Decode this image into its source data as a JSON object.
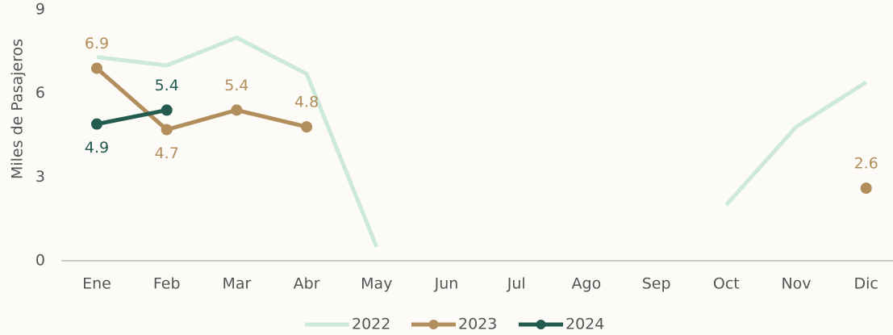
{
  "chart_data": {
    "type": "line",
    "y_label": "Miles de Pasajeros",
    "categories": [
      "Ene",
      "Feb",
      "Mar",
      "Abr",
      "May",
      "Jun",
      "Jul",
      "Ago",
      "Sep",
      "Oct",
      "Nov",
      "Dic"
    ],
    "series": [
      {
        "name": "2022",
        "color": "#cde8dc",
        "markers": false,
        "show_labels": false,
        "values": [
          7.3,
          7.0,
          8.0,
          6.7,
          0.5,
          null,
          null,
          null,
          null,
          2.0,
          4.8,
          6.4
        ]
      },
      {
        "name": "2023",
        "color": "#b28e5c",
        "markers": true,
        "show_labels": true,
        "values": [
          6.9,
          4.7,
          5.4,
          4.8,
          null,
          null,
          null,
          null,
          null,
          null,
          null,
          2.6
        ]
      },
      {
        "name": "2024",
        "color": "#235b4e",
        "markers": true,
        "show_labels": true,
        "values": [
          4.9,
          5.4,
          null,
          null,
          null,
          null,
          null,
          null,
          null,
          null,
          null,
          null
        ]
      }
    ],
    "ylim": [
      0,
      9
    ],
    "yticks": [
      0,
      3,
      6,
      9
    ],
    "grid": false,
    "legend": "bottom"
  }
}
